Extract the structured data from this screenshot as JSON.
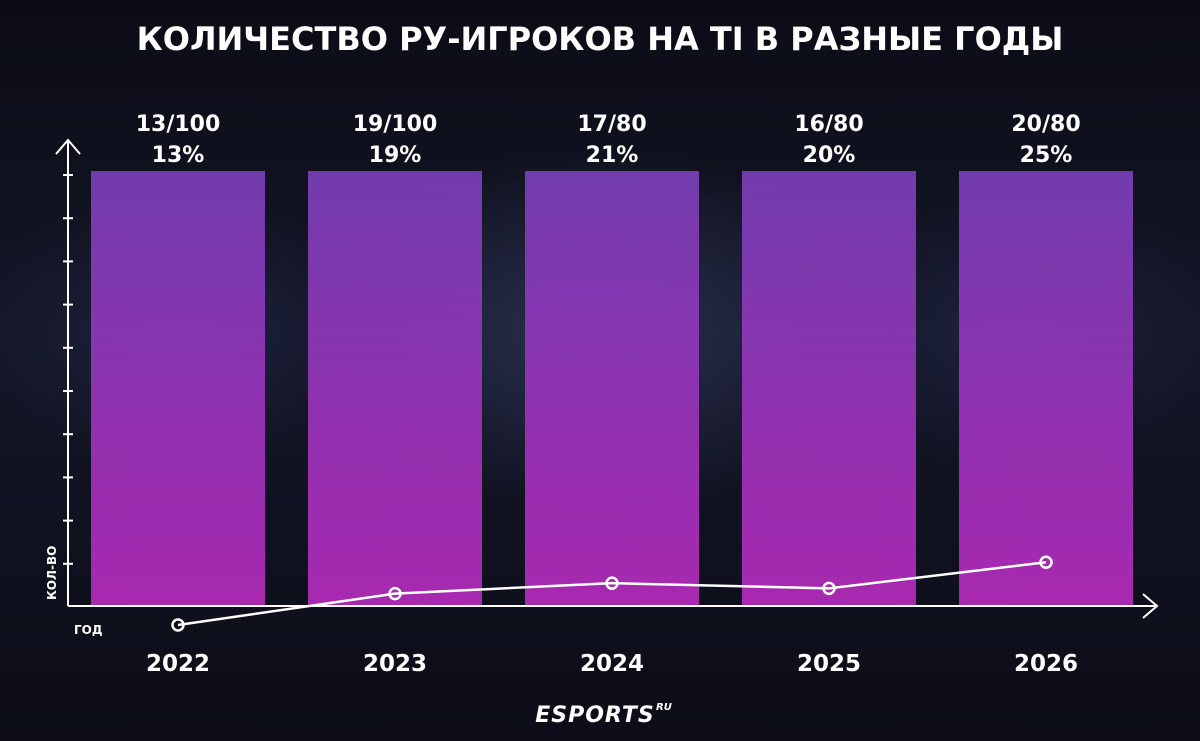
{
  "chart_data": {
    "type": "bar",
    "title": "КОЛИЧЕСТВО РУ-ИГРОКОВ НА TI В РАЗНЫЕ ГОДЫ",
    "xlabel": "ГОД",
    "ylabel": "КОЛ-ВО",
    "categories": [
      "2022",
      "2023",
      "2024",
      "2025",
      "2026"
    ],
    "counts": [
      "13/100",
      "19/100",
      "17/80",
      "16/80",
      "20/80"
    ],
    "percent_labels": [
      "13%",
      "19%",
      "21%",
      "20%",
      "25%"
    ],
    "values": [
      13,
      19,
      21,
      20,
      25
    ],
    "ylim": [
      0,
      100
    ],
    "grid": false,
    "legend": "none",
    "colors": {
      "bar_top": "#7a3fb8",
      "bar_bottom": "#b02ab8",
      "line": "#ffffff",
      "axis": "#ffffff"
    }
  },
  "brand": {
    "logo": "ESPORTS",
    "logo_suffix": "RU"
  }
}
